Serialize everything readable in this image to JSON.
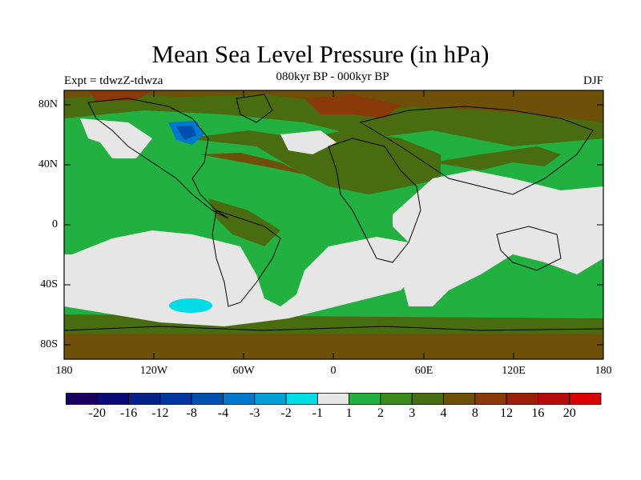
{
  "title": "Mean Sea Level Pressure (in hPa)",
  "subtitle": "080kyr BP - 000kyr BP",
  "experiment": "Expt = tdwzZ-tdwza",
  "season": "DJF",
  "axes": {
    "y_ticks": [
      "80N",
      "40N",
      "0",
      "40S",
      "80S"
    ],
    "x_ticks": [
      "180",
      "120W",
      "60W",
      "0",
      "60E",
      "120E",
      "180"
    ]
  },
  "colorbar": {
    "colors": [
      "#1a0060",
      "#0a0a78",
      "#06208c",
      "#0036a0",
      "#0050b0",
      "#0078cc",
      "#00a0d8",
      "#00dce6",
      "#e6e6e6",
      "#22b040",
      "#3c8a1a",
      "#4a6c10",
      "#6e5008",
      "#8a3a06",
      "#9a2008",
      "#b80c0c",
      "#d80000"
    ],
    "labels": [
      "-20",
      "-16",
      "-12",
      "-8",
      "-4",
      "-3",
      "-2",
      "-1",
      "1",
      "2",
      "3",
      "4",
      "8",
      "12",
      "16",
      "20"
    ]
  },
  "map_colors": {
    "ocean_base": "#22b040",
    "neutral": "#e6e6e6",
    "light_blue": "#00dce6",
    "blue": "#0078cc",
    "dark_blue": "#0050b0",
    "olive": "#4a6c10",
    "brown": "#6e5008",
    "dark_brown": "#8a3a06"
  }
}
